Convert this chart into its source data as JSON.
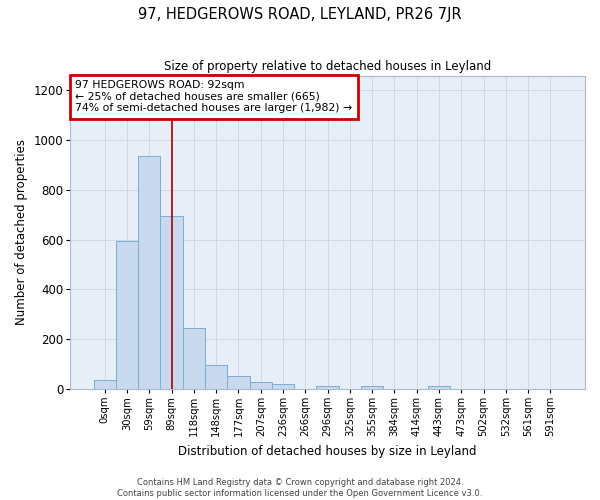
{
  "title": "97, HEDGEROWS ROAD, LEYLAND, PR26 7JR",
  "subtitle": "Size of property relative to detached houses in Leyland",
  "xlabel": "Distribution of detached houses by size in Leyland",
  "ylabel": "Number of detached properties",
  "bar_color": "#c8d9ee",
  "bar_edge_color": "#7aaed6",
  "grid_color": "#d0d8e8",
  "background_color": "#e8eef8",
  "annotation_text": "97 HEDGEROWS ROAD: 92sqm\n← 25% of detached houses are smaller (665)\n74% of semi-detached houses are larger (1,982) →",
  "annotation_box_edge_color": "#cc0000",
  "bin_labels": [
    "0sqm",
    "30sqm",
    "59sqm",
    "89sqm",
    "118sqm",
    "148sqm",
    "177sqm",
    "207sqm",
    "236sqm",
    "266sqm",
    "296sqm",
    "325sqm",
    "355sqm",
    "384sqm",
    "414sqm",
    "443sqm",
    "473sqm",
    "502sqm",
    "532sqm",
    "561sqm",
    "591sqm"
  ],
  "bar_heights": [
    35,
    595,
    935,
    695,
    245,
    95,
    52,
    28,
    20,
    0,
    12,
    0,
    12,
    0,
    0,
    12,
    0,
    0,
    0,
    0,
    0
  ],
  "ylim": [
    0,
    1260
  ],
  "yticks": [
    0,
    200,
    400,
    600,
    800,
    1000,
    1200
  ],
  "property_bin_index": 3,
  "vline_color": "#aa0000",
  "footer_text": "Contains HM Land Registry data © Crown copyright and database right 2024.\nContains public sector information licensed under the Open Government Licence v3.0."
}
